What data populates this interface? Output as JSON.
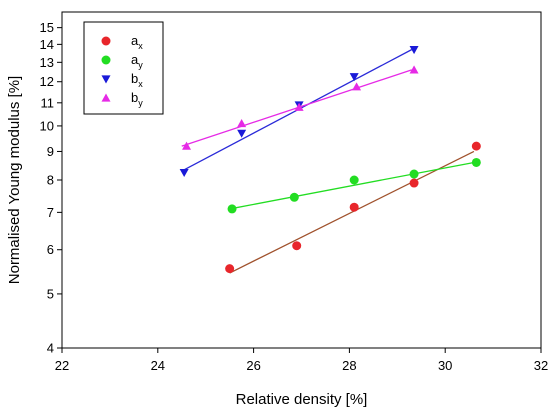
{
  "chart_data": {
    "type": "scatter",
    "title": "",
    "xlabel": "Relative density [%]",
    "ylabel": "Normalised Young modulus [%]",
    "xlim": [
      22,
      32
    ],
    "ylim": [
      4,
      16
    ],
    "y_scale": "log",
    "x_ticks": [
      22,
      24,
      26,
      28,
      30,
      32
    ],
    "y_ticks": [
      4,
      5,
      6,
      7,
      8,
      9,
      10,
      11,
      12,
      13,
      14,
      15
    ],
    "grid": false,
    "legend_position": "top-left",
    "series": [
      {
        "name": "a",
        "sub": "x",
        "color": "#e8262b",
        "marker": "circle",
        "points": [
          [
            25.5,
            5.55
          ],
          [
            26.9,
            6.1
          ],
          [
            28.1,
            7.15
          ],
          [
            29.35,
            7.9
          ],
          [
            30.65,
            9.2
          ]
        ],
        "fit": [
          [
            25.5,
            5.45
          ],
          [
            30.6,
            9.0
          ]
        ],
        "fit_color": "#a0522d"
      },
      {
        "name": "a",
        "sub": "y",
        "color": "#22dd22",
        "marker": "circle",
        "points": [
          [
            25.55,
            7.1
          ],
          [
            26.85,
            7.45
          ],
          [
            28.1,
            8.0
          ],
          [
            29.35,
            8.2
          ],
          [
            30.65,
            8.6
          ]
        ],
        "fit": [
          [
            25.5,
            7.1
          ],
          [
            30.6,
            8.6
          ]
        ],
        "fit_color": "#22dd22"
      },
      {
        "name": "b",
        "sub": "x",
        "color": "#1a1ad8",
        "marker": "triangle-down",
        "points": [
          [
            24.55,
            8.25
          ],
          [
            25.75,
            9.7
          ],
          [
            26.95,
            10.9
          ],
          [
            28.1,
            12.25
          ],
          [
            29.35,
            13.7
          ]
        ],
        "fit": [
          [
            24.5,
            8.3
          ],
          [
            29.3,
            13.7
          ]
        ],
        "fit_color": "#2a2ad8"
      },
      {
        "name": "b",
        "sub": "y",
        "color": "#e62ae6",
        "marker": "triangle-up",
        "points": [
          [
            24.6,
            9.2
          ],
          [
            25.75,
            10.1
          ],
          [
            26.95,
            10.8
          ],
          [
            28.15,
            11.75
          ],
          [
            29.35,
            12.6
          ]
        ],
        "fit": [
          [
            24.5,
            9.2
          ],
          [
            29.3,
            12.6
          ]
        ],
        "fit_color": "#e62ae6"
      }
    ]
  }
}
